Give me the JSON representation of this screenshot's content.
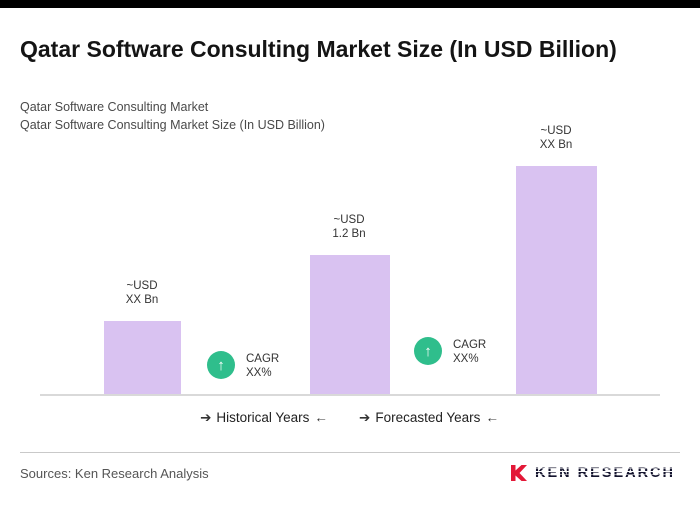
{
  "page": {
    "title": "Qatar Software Consulting Market Size (In USD Billion)",
    "subtitle_lines": [
      "Qatar Software Consulting Market",
      "Qatar Software Consulting Market Size (In USD Billion)"
    ],
    "footer": {
      "sources": "Sources: Ken Research Analysis",
      "logo_text": "KEN RESEARCH"
    }
  },
  "chart_data": {
    "type": "bar",
    "title": "Qatar Software Consulting Market Size (In USD Billion)",
    "ylabel": "",
    "xlabel": "",
    "grid": false,
    "axis_ticks_visible": false,
    "bars": [
      {
        "period": "Historical Years",
        "value_line1": "~USD",
        "value_line2": "XX Bn",
        "relative_height": 0.32
      },
      {
        "period": "Historical Years",
        "value_line1": "~USD",
        "value_line2": "1.2 Bn",
        "relative_height": 0.61
      },
      {
        "period": "Forecasted Years",
        "value_line1": "~USD",
        "value_line2": "XX Bn",
        "relative_height": 1.0
      }
    ],
    "cagr_annotations": [
      {
        "line1": "CAGR",
        "line2": "XX%",
        "icon": "up-arrow-icon",
        "icon_glyph": "↑"
      },
      {
        "line1": "CAGR",
        "line2": "XX%",
        "icon": "up-arrow-icon",
        "icon_glyph": "↑"
      }
    ],
    "period_labels": [
      {
        "arrow_in": "➔",
        "label": "Historical Years",
        "arrow_out": "←"
      },
      {
        "arrow_in": "➔",
        "label": "Forecasted Years",
        "arrow_out": "←"
      }
    ],
    "colors": {
      "bar": "#d9c2f1",
      "cagr_badge": "#2fbe8c",
      "logo_red": "#e31837",
      "top_bar": "#000000"
    }
  }
}
